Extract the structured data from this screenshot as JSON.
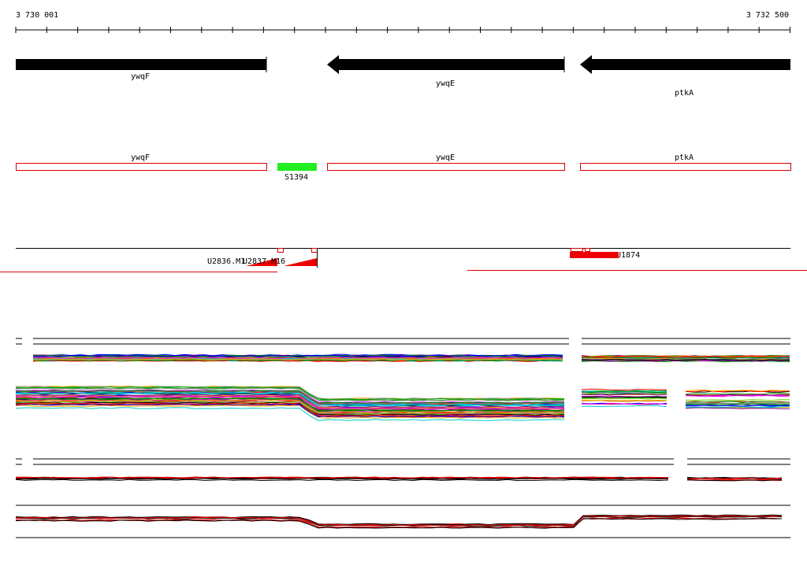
{
  "ruler": {
    "start": "3 730 001",
    "end": "3 732 500"
  },
  "genes": [
    {
      "label": "ywqF"
    },
    {
      "label": "ywqE"
    },
    {
      "label": "ptkA"
    }
  ],
  "annotations": [
    {
      "label": "ywqF"
    },
    {
      "label": "ywqE"
    },
    {
      "label": "ptkA"
    }
  ],
  "features": [
    {
      "label": "S1394"
    }
  ],
  "probes": [
    {
      "label": "U2836.M1"
    },
    {
      "label": "U2837.M16"
    },
    {
      "label": "U1874"
    }
  ]
}
